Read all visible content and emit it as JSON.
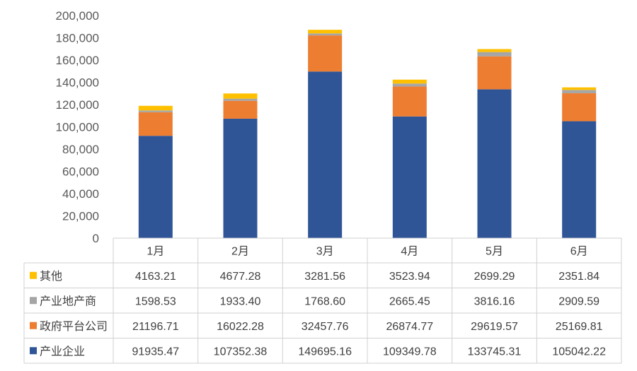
{
  "chart_data": {
    "type": "bar",
    "stacked": true,
    "categories": [
      "1月",
      "2月",
      "3月",
      "4月",
      "5月",
      "6月"
    ],
    "ylim": [
      0,
      200000
    ],
    "yticks": [
      "0",
      "20,000",
      "40,000",
      "60,000",
      "80,000",
      "100,000",
      "120,000",
      "140,000",
      "160,000",
      "180,000",
      "200,000"
    ],
    "series": [
      {
        "name": "产业企业",
        "color": "#2f5597",
        "values": [
          91935.47,
          107352.38,
          149695.16,
          109349.78,
          133745.31,
          105042.22
        ],
        "labels": [
          "91935.47",
          "107352.38",
          "149695.16",
          "109349.78",
          "133745.31",
          "105042.22"
        ]
      },
      {
        "name": "政府平台公司",
        "color": "#ed7d31",
        "values": [
          21196.71,
          16022.28,
          32457.76,
          26874.77,
          29619.57,
          25169.81
        ],
        "labels": [
          "21196.71",
          "16022.28",
          "32457.76",
          "26874.77",
          "29619.57",
          "25169.81"
        ]
      },
      {
        "name": "产业地产商",
        "color": "#a5a5a5",
        "values": [
          1598.53,
          1933.4,
          1768.6,
          2665.45,
          3816.16,
          2909.59
        ],
        "labels": [
          "1598.53",
          "1933.40",
          "1768.60",
          "2665.45",
          "3816.16",
          "2909.59"
        ]
      },
      {
        "name": "其他",
        "color": "#ffc000",
        "values": [
          4163.21,
          4677.28,
          3281.56,
          3523.94,
          2699.29,
          2351.84
        ],
        "labels": [
          "4163.21",
          "4677.28",
          "3281.56",
          "3523.94",
          "2699.29",
          "2351.84"
        ]
      }
    ],
    "table_row_order": [
      "其他",
      "产业地产商",
      "政府平台公司",
      "产业企业"
    ],
    "grid": false,
    "legend": "data-table"
  }
}
